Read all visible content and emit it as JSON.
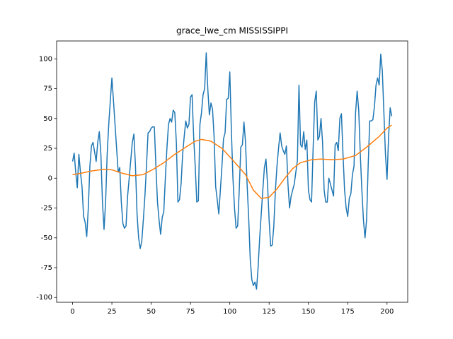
{
  "chart_data": {
    "type": "line",
    "title": "grace_lwe_cm MISSISSIPPI",
    "x": [
      0,
      1,
      2,
      3,
      4,
      5,
      6,
      7,
      8,
      9,
      10,
      11,
      12,
      13,
      14,
      15,
      16,
      17,
      18,
      19,
      20,
      21,
      22,
      23,
      24,
      25,
      26,
      27,
      28,
      29,
      30,
      31,
      32,
      33,
      34,
      35,
      36,
      37,
      38,
      39,
      40,
      41,
      42,
      43,
      44,
      45,
      46,
      47,
      48,
      49,
      50,
      51,
      52,
      53,
      54,
      55,
      56,
      57,
      58,
      59,
      60,
      61,
      62,
      63,
      64,
      65,
      66,
      67,
      68,
      69,
      70,
      71,
      72,
      73,
      74,
      75,
      76,
      77,
      78,
      79,
      80,
      81,
      82,
      83,
      84,
      85,
      86,
      87,
      88,
      89,
      90,
      91,
      92,
      93,
      94,
      95,
      96,
      97,
      98,
      99,
      100,
      101,
      102,
      103,
      104,
      105,
      106,
      107,
      108,
      109,
      110,
      111,
      112,
      113,
      114,
      115,
      116,
      117,
      118,
      119,
      120,
      121,
      122,
      123,
      124,
      125,
      126,
      127,
      128,
      129,
      130,
      131,
      132,
      133,
      134,
      135,
      136,
      137,
      138,
      139,
      140,
      141,
      142,
      143,
      144,
      145,
      146,
      147,
      148,
      149,
      150,
      151,
      152,
      153,
      154,
      155,
      156,
      157,
      158,
      159,
      160,
      161,
      162,
      163,
      164,
      165,
      166,
      167,
      168,
      169,
      170,
      171,
      172,
      173,
      174,
      175,
      176,
      177,
      178,
      179,
      180,
      181,
      182,
      183,
      184,
      185,
      186,
      187,
      188,
      189,
      190,
      191,
      192,
      193,
      194,
      195,
      196,
      197,
      198,
      199,
      200,
      201,
      202,
      203
    ],
    "series": [
      {
        "color": "#1f77b4",
        "values": [
          14,
          21,
          5,
          -8,
          20,
          5,
          -7,
          -32,
          -37,
          -49,
          -25,
          10,
          27,
          30,
          22,
          14,
          30,
          39,
          20,
          -20,
          -43,
          -20,
          20,
          45,
          65,
          84,
          65,
          45,
          25,
          5,
          9,
          -20,
          -38,
          -42,
          -40,
          -15,
          0,
          15,
          30,
          37,
          10,
          -30,
          -50,
          -59,
          -53,
          -35,
          -15,
          10,
          38,
          39,
          42,
          43,
          43,
          10,
          -20,
          -35,
          -47,
          -33,
          -28,
          0,
          25,
          45,
          50,
          47,
          57,
          55,
          30,
          -20,
          -18,
          -5,
          20,
          35,
          48,
          42,
          45,
          68,
          70,
          35,
          10,
          -20,
          -19,
          45,
          55,
          70,
          75,
          105,
          75,
          53,
          63,
          58,
          35,
          -7,
          -18,
          -30,
          -10,
          10,
          33,
          38,
          66,
          67,
          89,
          40,
          0,
          -25,
          -42,
          -40,
          -10,
          26,
          28,
          47,
          30,
          -5,
          -33,
          -68,
          -85,
          -90,
          -87,
          -93,
          -75,
          -50,
          -30,
          -10,
          9,
          16,
          -5,
          -35,
          -57,
          -56,
          -40,
          -10,
          10,
          25,
          38,
          27,
          23,
          20,
          27,
          -5,
          -25,
          -15,
          -10,
          -5,
          5,
          15,
          78,
          28,
          26,
          39,
          24,
          32,
          -10,
          -18,
          -20,
          25,
          64,
          73,
          32,
          35,
          50,
          30,
          -10,
          -20,
          -20,
          0,
          -5,
          -10,
          -15,
          28,
          30,
          23,
          50,
          54,
          20,
          -10,
          -25,
          -32,
          -17,
          -13,
          3,
          10,
          55,
          73,
          57,
          20,
          -10,
          -35,
          -50,
          -35,
          10,
          48,
          48,
          49,
          60,
          78,
          84,
          78,
          104,
          90,
          55,
          20,
          -1,
          35,
          59,
          52
        ]
      },
      {
        "color": "#ff7f0e",
        "x": [
          0,
          5,
          12,
          20,
          25,
          32,
          38,
          45,
          52,
          58,
          65,
          72,
          78,
          82,
          88,
          95,
          102,
          110,
          115,
          120,
          125,
          130,
          135,
          140,
          145,
          152,
          158,
          165,
          172,
          180,
          187,
          195,
          200,
          203
        ],
        "values": [
          3,
          4,
          6,
          7.5,
          7,
          4,
          2,
          3,
          8,
          13,
          20,
          26,
          31,
          32.5,
          31,
          25,
          15,
          3,
          -10,
          -17,
          -16,
          -9,
          0,
          8,
          13,
          15.5,
          16,
          15.5,
          16,
          19,
          26,
          35,
          42,
          44.5
        ]
      }
    ],
    "xlim": [
      -10.15,
      213.15
    ],
    "xticks": [
      0,
      25,
      50,
      75,
      100,
      125,
      150,
      175,
      200
    ],
    "ylim": [
      -104,
      115
    ],
    "yticks": [
      -100,
      -75,
      -50,
      -25,
      0,
      25,
      50,
      75,
      100
    ]
  }
}
